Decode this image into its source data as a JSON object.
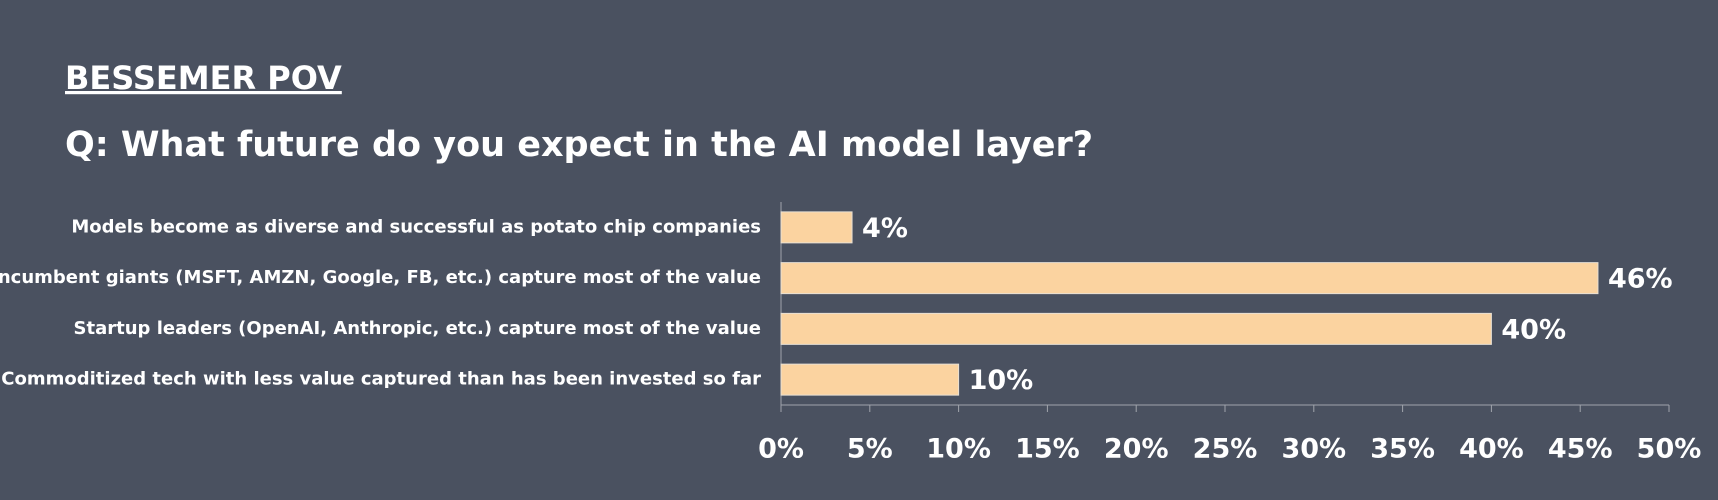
{
  "chart_data": {
    "type": "hbar",
    "header": "BESSEMER POV",
    "title": "Q: What future do you expect in the AI model layer?",
    "categories": [
      "Models become as diverse and successful as potato chip companies",
      "Incumbent giants (MSFT, AMZN, Google, FB, etc.) capture most of the value",
      "Startup leaders (OpenAI, Anthropic, etc.) capture most of the value",
      "Commoditized tech with less value captured than has been invested so far"
    ],
    "values": [
      4,
      46,
      40,
      10
    ],
    "value_labels": [
      "4%",
      "46%",
      "40%",
      "10%"
    ],
    "color": "#fbd3a0",
    "xlim": [
      0,
      50
    ],
    "xticks": [
      {
        "value": 0,
        "label": "0%"
      },
      {
        "value": 5,
        "label": "5%"
      },
      {
        "value": 10,
        "label": "10%"
      },
      {
        "value": 15,
        "label": "15%"
      },
      {
        "value": 20,
        "label": "20%"
      },
      {
        "value": 25,
        "label": "25%"
      },
      {
        "value": 30,
        "label": "30%"
      },
      {
        "value": 35,
        "label": "35%"
      },
      {
        "value": 40,
        "label": "40%"
      },
      {
        "value": 45,
        "label": "45%"
      },
      {
        "value": 50,
        "label": "50%"
      }
    ]
  }
}
